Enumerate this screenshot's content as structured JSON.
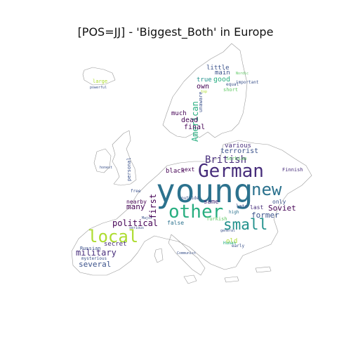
{
  "title": "[POS=JJ] - 'Biggest_Both' in Europe",
  "colors": {
    "outline": "#9a9a9a",
    "dark_purple": "#440154",
    "purple": "#472d7b",
    "blue_purple": "#3b528b",
    "blue": "#2c728e",
    "teal": "#21918c",
    "green_teal": "#28ae80",
    "green": "#5ec962",
    "yellow_green": "#addc30",
    "yellow": "#fde725"
  },
  "words": [
    {
      "text": "young",
      "weight": 1.0,
      "color": "blue"
    },
    {
      "text": "German",
      "weight": 0.62,
      "color": "purple"
    },
    {
      "text": "other",
      "weight": 0.55,
      "color": "green_teal"
    },
    {
      "text": "new",
      "weight": 0.5,
      "color": "blue"
    },
    {
      "text": "local",
      "weight": 0.45,
      "color": "yellow_green"
    },
    {
      "text": "small",
      "weight": 0.4,
      "color": "teal"
    },
    {
      "text": "British",
      "weight": 0.3,
      "color": "purple"
    },
    {
      "text": "political",
      "weight": 0.26,
      "color": "dark_purple"
    },
    {
      "text": "military",
      "weight": 0.24,
      "color": "purple"
    },
    {
      "text": "first",
      "weight": 0.22,
      "color": "dark_purple"
    },
    {
      "text": "American",
      "weight": 0.22,
      "color": "green_teal"
    },
    {
      "text": "Soviet",
      "weight": 0.2,
      "color": "dark_purple"
    },
    {
      "text": "several",
      "weight": 0.19,
      "color": "blue_purple"
    },
    {
      "text": "former",
      "weight": 0.19,
      "color": "blue_purple"
    },
    {
      "text": "many",
      "weight": 0.18,
      "color": "dark_purple"
    },
    {
      "text": "terrorist",
      "weight": 0.17,
      "color": "blue_purple"
    },
    {
      "text": "various",
      "weight": 0.16,
      "color": "purple"
    },
    {
      "text": "good",
      "weight": 0.16,
      "color": "green_teal"
    },
    {
      "text": "little",
      "weight": 0.15,
      "color": "blue_purple"
    },
    {
      "text": "main",
      "weight": 0.15,
      "color": "blue_purple"
    },
    {
      "text": "own",
      "weight": 0.15,
      "color": "dark_purple"
    },
    {
      "text": "dead",
      "weight": 0.15,
      "color": "dark_purple"
    },
    {
      "text": "final",
      "weight": 0.15,
      "color": "dark_purple"
    },
    {
      "text": "true",
      "weight": 0.14,
      "color": "teal"
    },
    {
      "text": "much",
      "weight": 0.13,
      "color": "dark_purple"
    },
    {
      "text": "same",
      "weight": 0.13,
      "color": "purple"
    },
    {
      "text": "black",
      "weight": 0.13,
      "color": "dark_purple"
    },
    {
      "text": "secret",
      "weight": 0.13,
      "color": "purple"
    },
    {
      "text": "old",
      "weight": 0.13,
      "color": "yellow_green"
    },
    {
      "text": "only",
      "weight": 0.12,
      "color": "blue_purple"
    },
    {
      "text": "false",
      "weight": 0.12,
      "color": "blue"
    },
    {
      "text": "next",
      "weight": 0.11,
      "color": "dark_purple"
    },
    {
      "text": "nearby",
      "weight": 0.11,
      "color": "dark_purple"
    },
    {
      "text": "last",
      "weight": 0.11,
      "color": "purple"
    },
    {
      "text": "late",
      "weight": 0.1,
      "color": "blue_purple"
    },
    {
      "text": "short",
      "weight": 0.1,
      "color": "green"
    },
    {
      "text": "personal",
      "weight": 0.1,
      "color": "blue_purple"
    },
    {
      "text": "Serbian",
      "weight": 0.09,
      "color": "green"
    },
    {
      "text": "Russian",
      "weight": 0.09,
      "color": "blue_purple"
    },
    {
      "text": "Turkish",
      "weight": 0.09,
      "color": "green"
    },
    {
      "text": "Finnish",
      "weight": 0.08,
      "color": "purple"
    },
    {
      "text": "unaware",
      "weight": 0.08,
      "color": "blue_purple"
    },
    {
      "text": "large",
      "weight": 0.08,
      "color": "yellow_green"
    },
    {
      "text": "high",
      "weight": 0.08,
      "color": "blue"
    },
    {
      "text": "early",
      "weight": 0.08,
      "color": "blue_purple"
    },
    {
      "text": "mysterious",
      "weight": 0.07,
      "color": "blue_purple"
    },
    {
      "text": "Human",
      "weight": 0.07,
      "color": "green_teal"
    },
    {
      "text": "outside",
      "weight": 0.07,
      "color": "blue_purple"
    },
    {
      "text": "free",
      "weight": 0.07,
      "color": "blue_purple"
    },
    {
      "text": "important",
      "weight": 0.07,
      "color": "blue_purple"
    },
    {
      "text": "equal",
      "weight": 0.06,
      "color": "blue_purple"
    },
    {
      "text": "honest",
      "weight": 0.06,
      "color": "blue_purple"
    },
    {
      "text": "general",
      "weight": 0.06,
      "color": "blue_purple"
    },
    {
      "text": "Communist",
      "weight": 0.06,
      "color": "blue_purple"
    },
    {
      "text": "serious",
      "weight": 0.06,
      "color": "blue_purple"
    },
    {
      "text": "powerful",
      "weight": 0.06,
      "color": "blue_purple"
    },
    {
      "text": "Major",
      "weight": 0.06,
      "color": "blue_purple"
    },
    {
      "text": "top",
      "weight": 0.06,
      "color": "yellow_green"
    },
    {
      "text": "Nordic",
      "weight": 0.05,
      "color": "green"
    }
  ]
}
